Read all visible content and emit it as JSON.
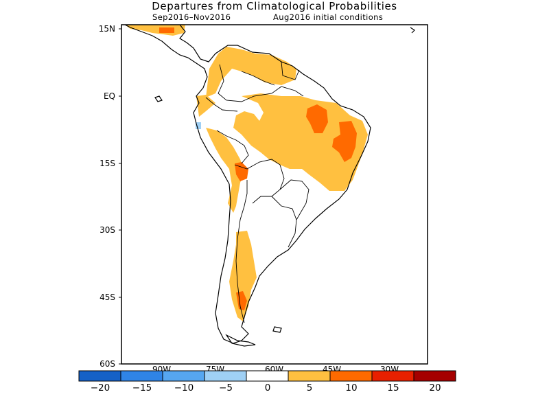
{
  "header": {
    "title": "Departures from Climatological Probabilities",
    "period": "Sep2016–Nov2016",
    "init": "Aug2016 initial conditions"
  },
  "axes": {
    "lat_labels": [
      "15N",
      "EQ",
      "15S",
      "30S",
      "45S",
      "60S"
    ],
    "lon_labels": [
      "90W",
      "75W",
      "60W",
      "45W",
      "30W"
    ]
  },
  "colorbar": {
    "labels": [
      "−20",
      "−15",
      "−10",
      "−5",
      "0",
      "5",
      "10",
      "15",
      "20"
    ],
    "colors": [
      "#1561c7",
      "#2f84e6",
      "#56a6f0",
      "#9fd0f5",
      "#ffffff",
      "#ffc040",
      "#ff6a00",
      "#e82000",
      "#a50000"
    ]
  }
}
